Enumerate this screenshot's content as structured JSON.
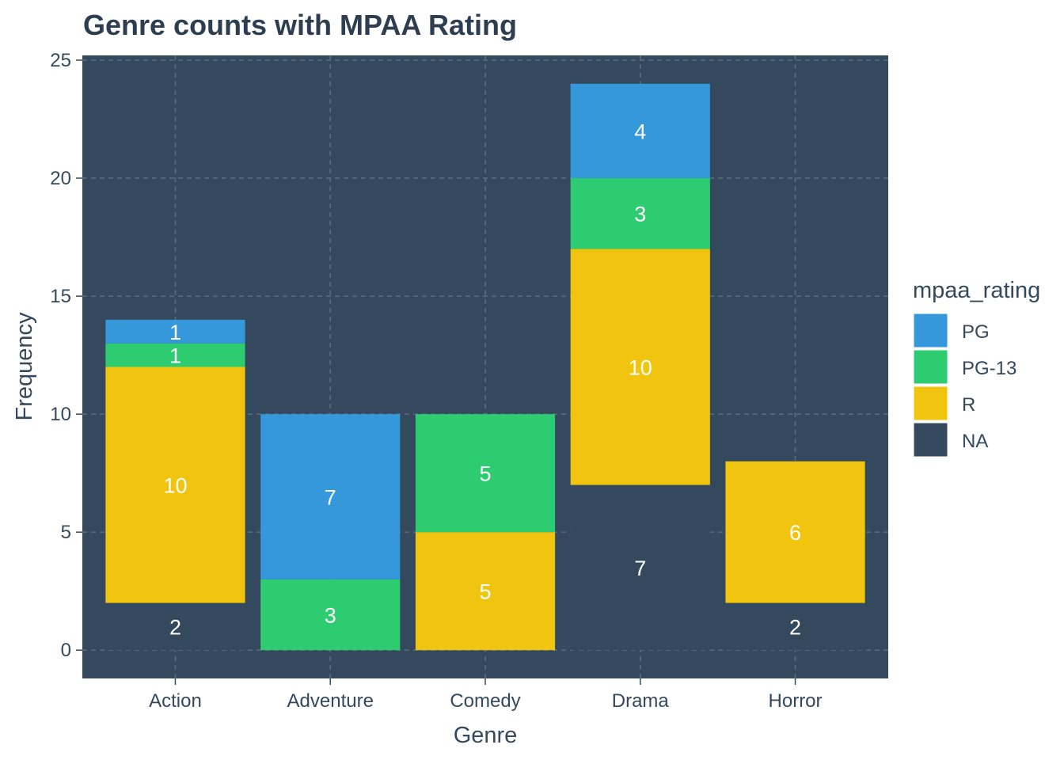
{
  "chart_data": {
    "type": "bar",
    "stacked": true,
    "title": "Genre counts with MPAA Rating",
    "xlabel": "Genre",
    "ylabel": "Frequency",
    "categories": [
      "Action",
      "Adventure",
      "Comedy",
      "Drama",
      "Horror"
    ],
    "series": [
      {
        "name": "PG",
        "color": "#3498db",
        "values": [
          1,
          7,
          0,
          4,
          0
        ]
      },
      {
        "name": "PG-13",
        "color": "#2ecc71",
        "values": [
          1,
          3,
          5,
          3,
          0
        ]
      },
      {
        "name": "R",
        "color": "#f1c40f",
        "values": [
          10,
          0,
          5,
          10,
          6
        ]
      },
      {
        "name": "NA",
        "color": "#34495e",
        "values": [
          2,
          0,
          0,
          7,
          2
        ]
      }
    ],
    "ylim": [
      -1.2,
      25.2
    ],
    "yticks": [
      0,
      5,
      10,
      15,
      20,
      25
    ],
    "legend": {
      "title": "mpaa_rating",
      "position": "right"
    },
    "panel_background": "#34495e",
    "grid": true
  }
}
